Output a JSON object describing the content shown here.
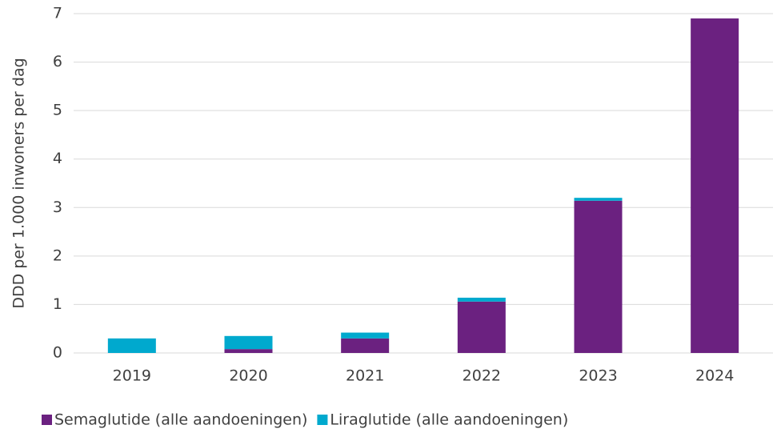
{
  "chart_data": {
    "type": "stacked_bar",
    "y_label": "DDD per 1.000 inwoners per dag",
    "categories": [
      "2019",
      "2020",
      "2021",
      "2022",
      "2023",
      "2024"
    ],
    "series": [
      {
        "name": "Semaglutide (alle aandoeningen)",
        "color": "#6b2180",
        "values": [
          0,
          0.08,
          0.3,
          1.06,
          3.14,
          6.9
        ]
      },
      {
        "name": "Liraglutide (alle aandoeningen)",
        "color": "#00a9ce",
        "values": [
          0.3,
          0.27,
          0.12,
          0.08,
          0.06,
          0
        ]
      }
    ],
    "ylim": [
      0,
      7
    ],
    "yticks": [
      0,
      1,
      2,
      3,
      4,
      5,
      6,
      7
    ],
    "grid": true,
    "legend": "bottom"
  }
}
